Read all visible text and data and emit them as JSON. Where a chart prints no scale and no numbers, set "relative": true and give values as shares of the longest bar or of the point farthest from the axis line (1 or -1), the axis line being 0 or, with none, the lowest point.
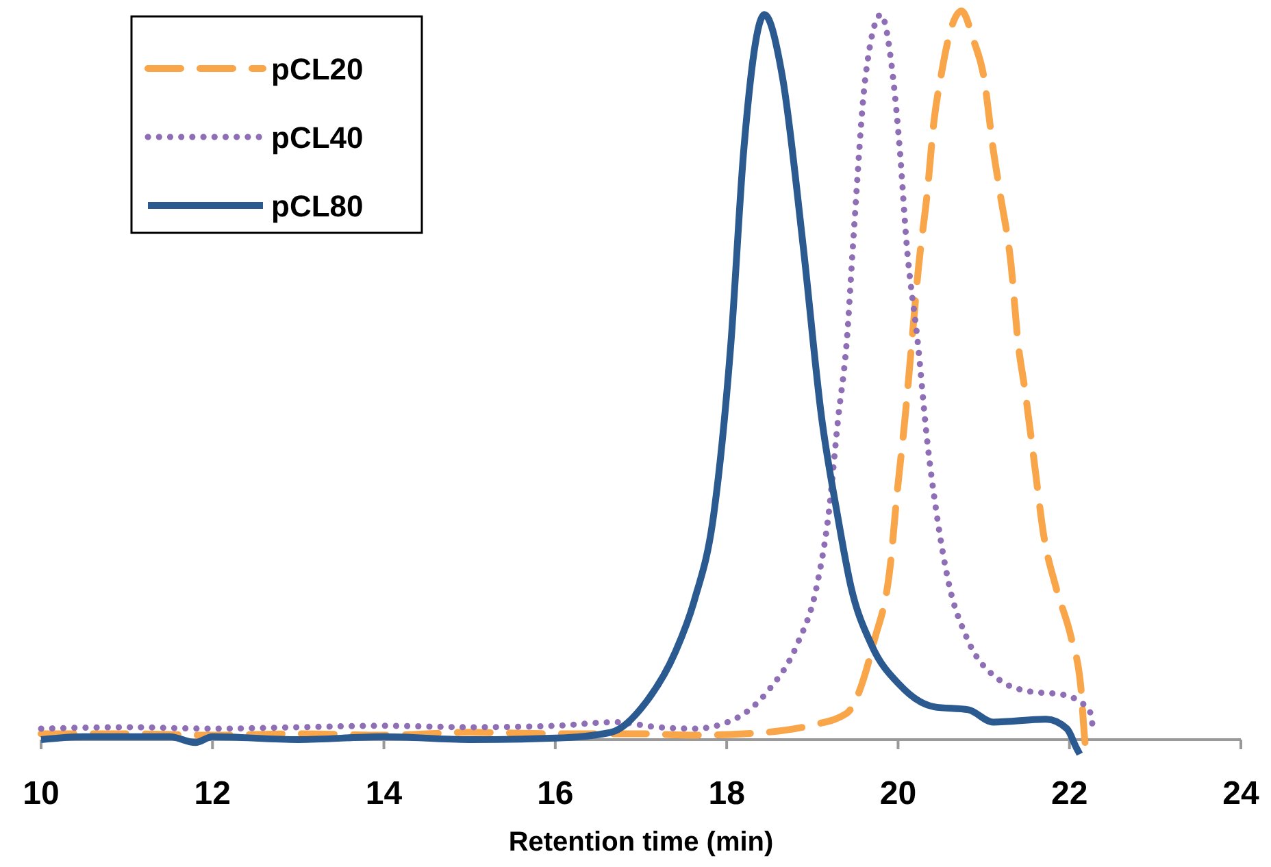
{
  "chart_data": {
    "type": "line",
    "xlabel": "Retention time (min)",
    "relative": true,
    "xlim": [
      10,
      24
    ],
    "xticks": [
      10,
      12,
      14,
      16,
      18,
      20,
      22,
      24
    ],
    "legend": "top left",
    "grid": false,
    "series": [
      {
        "name": "pCL20",
        "color": "#f9a54a",
        "line_style": "dashed",
        "x": [
          10,
          11,
          12,
          13,
          14,
          15,
          16,
          17,
          17.6,
          18.2,
          19.0,
          19.4,
          19.72,
          19.91,
          19.99,
          20.08,
          20.16,
          20.24,
          20.34,
          20.42,
          20.5,
          20.63,
          20.74,
          20.88,
          21.0,
          21.11,
          21.19,
          21.32,
          21.4,
          21.48,
          21.59,
          21.7,
          21.84,
          22.02,
          22.13,
          22.19,
          22.22
        ],
        "values": [
          0.008,
          0.008,
          0.006,
          0.008,
          0.006,
          0.01,
          0.008,
          0.008,
          0.006,
          0.008,
          0.02,
          0.036,
          0.135,
          0.24,
          0.34,
          0.44,
          0.545,
          0.65,
          0.75,
          0.85,
          0.91,
          0.98,
          1,
          0.96,
          0.91,
          0.81,
          0.75,
          0.65,
          0.545,
          0.48,
          0.38,
          0.28,
          0.21,
          0.14,
          0.075,
          -0.011,
          -0.02
        ]
      },
      {
        "name": "pCL40",
        "color": "#8e6fb5",
        "line_style": "dotted",
        "x": [
          10,
          11,
          12,
          13,
          14,
          15,
          16,
          16.7,
          17.2,
          17.62,
          18.09,
          18.49,
          18.82,
          19.05,
          19.19,
          19.3,
          19.4,
          19.48,
          19.62,
          19.8,
          19.94,
          20.02,
          20.1,
          20.23,
          20.34,
          20.45,
          20.6,
          20.79,
          21.17,
          21.54,
          21.91,
          22.23,
          22.27
        ],
        "values": [
          0.015,
          0.017,
          0.015,
          0.017,
          0.019,
          0.017,
          0.019,
          0.024,
          0.017,
          0.015,
          0.028,
          0.068,
          0.13,
          0.21,
          0.31,
          0.44,
          0.545,
          0.69,
          0.91,
          0.995,
          0.91,
          0.81,
          0.68,
          0.545,
          0.41,
          0.31,
          0.21,
          0.143,
          0.083,
          0.066,
          0.062,
          0.041,
          0.019
        ]
      },
      {
        "name": "pCL80",
        "color": "#2a5a8f",
        "line_style": "solid",
        "x": [
          10,
          10.5,
          11.5,
          11.8,
          12,
          13,
          14,
          15,
          16,
          16.65,
          17.05,
          17.4,
          17.62,
          17.85,
          18.05,
          18.2,
          18.44,
          18.65,
          18.89,
          19.11,
          19.29,
          19.45,
          19.69,
          20.02,
          20.42,
          20.82,
          21.11,
          21.73,
          21.97,
          22.08,
          22.12
        ],
        "values": [
          0,
          0.004,
          0.004,
          -0.004,
          0.004,
          0,
          0.004,
          0,
          0.002,
          0.01,
          0.05,
          0.12,
          0.19,
          0.31,
          0.545,
          0.81,
          0.995,
          0.91,
          0.68,
          0.44,
          0.31,
          0.21,
          0.13,
          0.075,
          0.045,
          0.041,
          0.024,
          0.028,
          0.015,
          -0.011,
          -0.02
        ]
      }
    ]
  }
}
